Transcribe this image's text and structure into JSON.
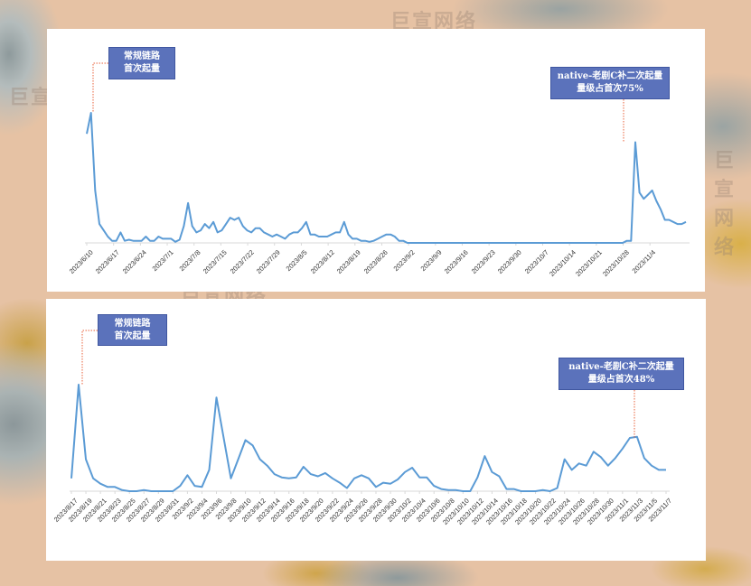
{
  "watermark": {
    "text": "巨宣网络"
  },
  "colors": {
    "line": "#5b9bd5",
    "callout_bg": "#5b72bb",
    "leader": "#e8603a",
    "axis": "#d9d9d9"
  },
  "chart_data": [
    {
      "type": "line",
      "title": "",
      "xlabel": "",
      "ylabel": "",
      "grid": false,
      "legend": "none",
      "x_tick_labels": [
        "2023/6/10",
        "2023/6/17",
        "2023/6/24",
        "2023/7/1",
        "2023/7/8",
        "2023/7/15",
        "2023/7/22",
        "2023/7/29",
        "2023/8/5",
        "2023/8/12",
        "2023/8/19",
        "2023/8/26",
        "2023/9/2",
        "2023/9/9",
        "2023/9/16",
        "2023/9/23",
        "2023/9/30",
        "2023/10/7",
        "2023/10/14",
        "2023/10/21",
        "2023/10/28",
        "2023/11/4"
      ],
      "x_start": "2023/6/10",
      "x_end": "2023/11/7",
      "values_relative": [
        52,
        62,
        25,
        9,
        6,
        3,
        1,
        1,
        5,
        1,
        1.5,
        1,
        1,
        1,
        3,
        1,
        1,
        3,
        2,
        2,
        2,
        0.5,
        1.5,
        8,
        19,
        8,
        5,
        6,
        9,
        7,
        10,
        5,
        6,
        9,
        12,
        11,
        12,
        8,
        6,
        5,
        7,
        7,
        5,
        4,
        3,
        4,
        3,
        2,
        4,
        5,
        5,
        7,
        10,
        4,
        4,
        3,
        3,
        3,
        4,
        5,
        5,
        10,
        4,
        2,
        2,
        1,
        1,
        0.5,
        1,
        2,
        3,
        4,
        4,
        3,
        1,
        1,
        0,
        0,
        0,
        0,
        0,
        0,
        0,
        0,
        0,
        0,
        0,
        0,
        0,
        0,
        0,
        0,
        0,
        0,
        0,
        0,
        0,
        0,
        0,
        0,
        0,
        0,
        0,
        0,
        0,
        0,
        0,
        0,
        0,
        0,
        0,
        0,
        0,
        0,
        0,
        0,
        0,
        0,
        0,
        0,
        0,
        0,
        0,
        0,
        0,
        0,
        0,
        0,
        1,
        1,
        48,
        24,
        21,
        23,
        25,
        20,
        16,
        11,
        11,
        10,
        9,
        9,
        10
      ],
      "annotations": [
        {
          "text_line1": "常规链路",
          "text_line2": "首次起量",
          "points_to": "2023/6/11"
        },
        {
          "text_line1": "native-老剧C补二次起量",
          "text_line2": "量级占首次75%",
          "points_to": "2023/10/23"
        }
      ]
    },
    {
      "type": "line",
      "title": "",
      "xlabel": "",
      "ylabel": "",
      "grid": false,
      "legend": "none",
      "x_tick_labels": [
        "2023/8/17",
        "2023/8/19",
        "2023/8/21",
        "2023/8/23",
        "2023/8/25",
        "2023/8/27",
        "2023/8/29",
        "2023/8/31",
        "2023/9/2",
        "2023/9/4",
        "2023/9/6",
        "2023/9/8",
        "2023/9/10",
        "2023/9/12",
        "2023/9/14",
        "2023/9/16",
        "2023/9/18",
        "2023/9/20",
        "2023/9/22",
        "2023/9/24",
        "2023/9/26",
        "2023/9/28",
        "2023/9/30",
        "2023/10/2",
        "2023/10/4",
        "2023/10/6",
        "2023/10/8",
        "2023/10/10",
        "2023/10/12",
        "2023/10/14",
        "2023/10/16",
        "2023/10/18",
        "2023/10/20",
        "2023/10/22",
        "2023/10/24",
        "2023/10/26",
        "2023/10/28",
        "2023/10/30",
        "2023/11/1",
        "2023/11/3",
        "2023/11/5",
        "2023/11/7"
      ],
      "x_start": "2023/8/17",
      "x_end": "2023/11/7",
      "values_relative": [
        12,
        100,
        30,
        12,
        7,
        4,
        4,
        1,
        0,
        0,
        1,
        0,
        0,
        0,
        0,
        5,
        15,
        5,
        4,
        20,
        88,
        50,
        12,
        30,
        48,
        43,
        30,
        24,
        16,
        13,
        12,
        13,
        23,
        16,
        14,
        17,
        12,
        8,
        3,
        12,
        15,
        12,
        4,
        8,
        7,
        11,
        18,
        22,
        13,
        13,
        5,
        2,
        1,
        1,
        0,
        0,
        13,
        33,
        18,
        14,
        2,
        2,
        0,
        0,
        0,
        1,
        0,
        3,
        30,
        20,
        26,
        24,
        37,
        32,
        24,
        31,
        40,
        50,
        51,
        31,
        24,
        20,
        20
      ],
      "annotations": [
        {
          "text_line1": "常规链路",
          "text_line2": "首次起量",
          "points_to": "2023/8/18"
        },
        {
          "text_line1": "native-老剧C补二次起量",
          "text_line2": "量级占首次48%",
          "points_to": "2023/11/3"
        }
      ]
    }
  ]
}
